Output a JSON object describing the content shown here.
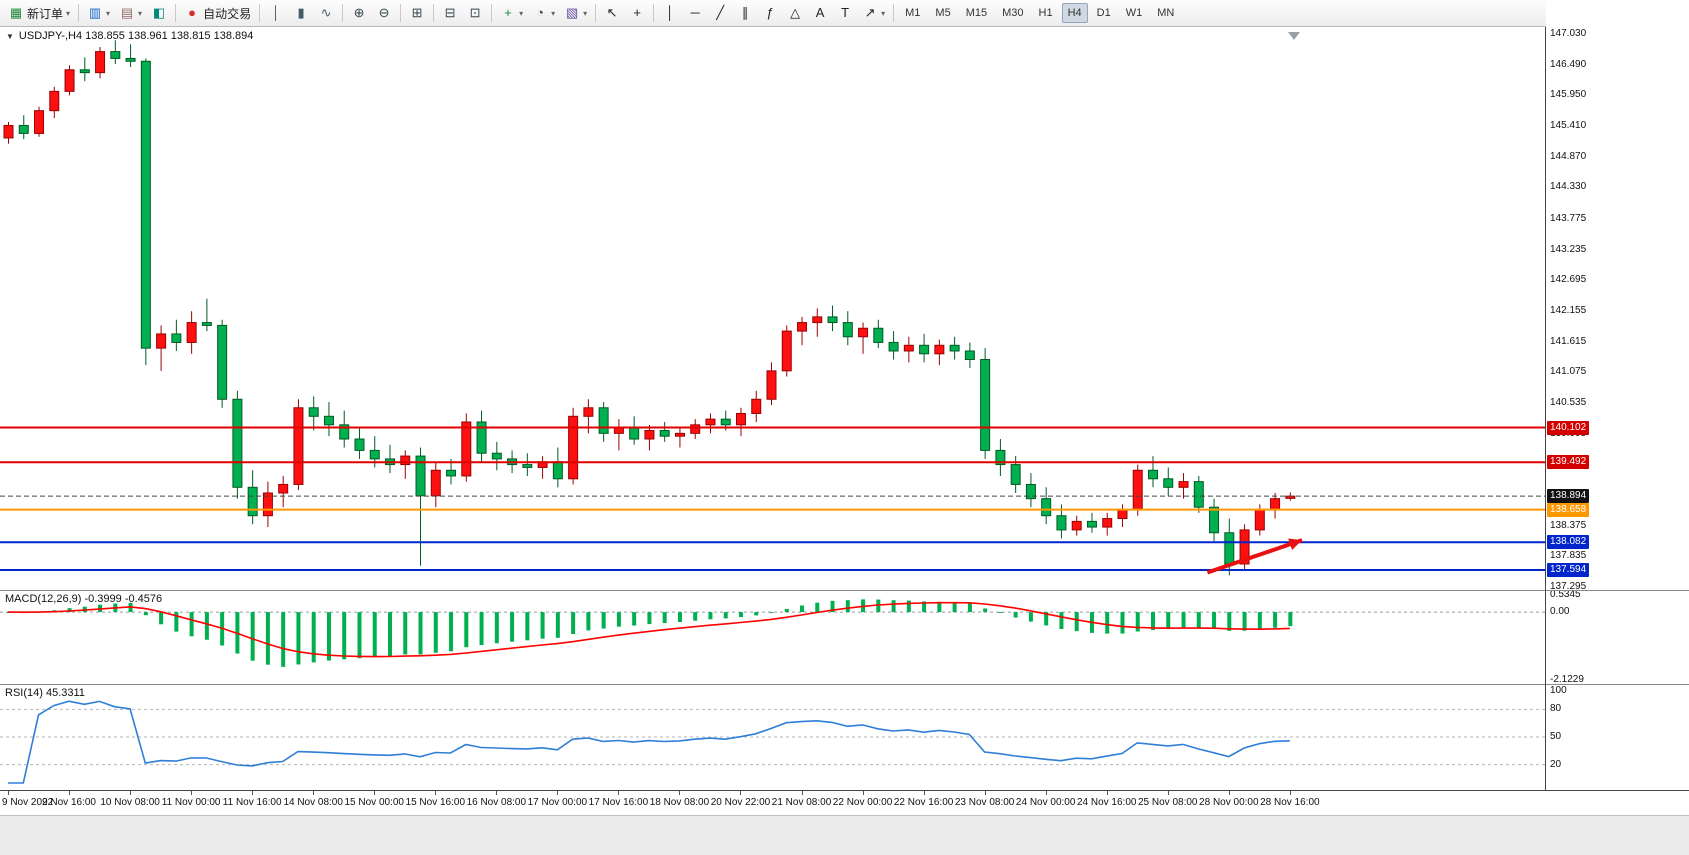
{
  "toolbar": {
    "groups": [
      {
        "items": [
          {
            "name": "new-order",
            "glyph": "▦",
            "color": "#1b8a3a",
            "label": "新订单",
            "caret": true
          }
        ]
      },
      {
        "items": [
          {
            "name": "new-chart",
            "glyph": "▥",
            "color": "#1565c0",
            "caret": true
          },
          {
            "name": "profiles",
            "glyph": "▤",
            "color": "#8d6e63",
            "caret": true
          },
          {
            "name": "data-window",
            "glyph": "◧",
            "color": "#00897b"
          }
        ]
      },
      {
        "items": [
          {
            "name": "auto-trading",
            "glyph": "●",
            "color": "#d32f2f",
            "label": "自动交易"
          }
        ]
      },
      {
        "items": [
          {
            "name": "bar-chart-mode",
            "glyph": "│",
            "color": "#455a64"
          },
          {
            "name": "candlestick-mode",
            "glyph": "▮",
            "color": "#455a64"
          },
          {
            "name": "line-chart-mode",
            "glyph": "∿",
            "color": "#455a64"
          }
        ]
      },
      {
        "items": [
          {
            "name": "zoom-in",
            "glyph": "⊕",
            "color": "#37474f"
          },
          {
            "name": "zoom-out",
            "glyph": "⊖",
            "color": "#37474f"
          }
        ]
      },
      {
        "items": [
          {
            "name": "tile-windows",
            "glyph": "⊞",
            "color": "#37474f"
          }
        ]
      },
      {
        "items": [
          {
            "name": "auto-arrange",
            "glyph": "⊟",
            "color": "#37474f"
          },
          {
            "name": "arrange-charts",
            "glyph": "⊡",
            "color": "#37474f"
          }
        ]
      },
      {
        "items": [
          {
            "name": "indicators",
            "glyph": "+",
            "color": "#1b8a3a",
            "caret": true
          },
          {
            "name": "periods",
            "glyph": "◔",
            "color": "#37474f",
            "caret": true
          },
          {
            "name": "templates",
            "glyph": "▧",
            "color": "#6a4fa3",
            "caret": true
          }
        ]
      },
      {
        "items": [
          {
            "name": "cursor",
            "glyph": "↖",
            "color": "#222222"
          },
          {
            "name": "crosshair",
            "glyph": "+",
            "color": "#222222"
          }
        ]
      },
      {
        "items": [
          {
            "name": "vertical-line-tool",
            "glyph": "│",
            "color": "#222222"
          },
          {
            "name": "horizontal-line-tool",
            "glyph": "─",
            "color": "#222222"
          },
          {
            "name": "trendline-tool",
            "glyph": "╱",
            "color": "#222222"
          },
          {
            "name": "channel-tool",
            "glyph": "∥",
            "color": "#222222"
          },
          {
            "name": "fibonacci-tool",
            "glyph": "ƒ",
            "color": "#222222"
          },
          {
            "name": "shapes-tool",
            "glyph": "△",
            "color": "#222222"
          },
          {
            "name": "text-tool",
            "glyph": "A",
            "color": "#222222"
          },
          {
            "name": "label-tool",
            "glyph": "T",
            "color": "#222222"
          },
          {
            "name": "arrows-tool",
            "glyph": "↗",
            "color": "#222222",
            "caret": true
          }
        ]
      }
    ],
    "timeframes": {
      "items": [
        "M1",
        "M5",
        "M15",
        "M30",
        "H1",
        "H4",
        "D1",
        "W1",
        "MN"
      ],
      "active": "H4"
    },
    "right": {
      "items": [
        {
          "name": "support-contact",
          "glyph": "☎",
          "color": "#1565c0"
        },
        {
          "name": "messages",
          "glyph": "✉",
          "color": "#1565c0"
        }
      ],
      "badge_color": "#e53935"
    }
  },
  "chart": {
    "title_text": "USDJPY-,H4 138.855 138.961 138.815 138.894",
    "y_axis_ticks": [
      "147.030",
      "146.490",
      "145.950",
      "145.410",
      "144.870",
      "144.330",
      "143.775",
      "143.235",
      "142.695",
      "142.155",
      "141.615",
      "141.075",
      "140.535",
      "139.995",
      "138.375",
      "137.835",
      "137.295"
    ],
    "price_badges": [
      {
        "text": "140.102",
        "bg": "#d40000"
      },
      {
        "text": "139.492",
        "bg": "#d40000"
      },
      {
        "text": "138.894",
        "bg": "#111111"
      },
      {
        "text": "138.658",
        "bg": "#ff9800"
      },
      {
        "text": "138.082",
        "bg": "#0026cc"
      },
      {
        "text": "137.594",
        "bg": "#0026cc"
      }
    ],
    "x_axis_labels": [
      "9 Nov 2022",
      "9 Nov 16:00",
      "10 Nov 08:00",
      "11 Nov 00:00",
      "11 Nov 16:00",
      "14 Nov 08:00",
      "15 Nov 00:00",
      "15 Nov 16:00",
      "16 Nov 08:00",
      "17 Nov 00:00",
      "17 Nov 16:00",
      "18 Nov 08:00",
      "20 Nov 22:00",
      "21 Nov 08:00",
      "22 Nov 00:00",
      "22 Nov 16:00",
      "23 Nov 08:00",
      "24 Nov 00:00",
      "24 Nov 16:00",
      "25 Nov 08:00",
      "28 Nov 00:00",
      "28 Nov 16:00"
    ]
  },
  "macd": {
    "label": "MACD(12,26,9) -0.3999 -0.4576",
    "axis": [
      {
        "text": "0.5345",
        "v": 0.5345
      },
      {
        "text": "0.00",
        "v": 0
      },
      {
        "text": "-2.1229",
        "v": -2.1229
      }
    ],
    "ylim": [
      -2.1229,
      0.5345
    ],
    "bar_color": "#00b050",
    "signal_color": "#ff0000"
  },
  "rsi": {
    "label": "RSI(14) 45.3311",
    "axis": [
      {
        "text": "100",
        "v": 100
      },
      {
        "text": "80",
        "v": 80
      },
      {
        "text": "50",
        "v": 50
      },
      {
        "text": "20",
        "v": 20
      }
    ],
    "levels": [
      80,
      50,
      20
    ],
    "line_color": "#2f7ed8"
  },
  "chart_data": {
    "type": "candlestick",
    "symbol": "USDJPY-",
    "timeframe": "H4",
    "ylim": [
      137.295,
      147.03
    ],
    "up_color": "#fe1010",
    "down_color": "#00b050",
    "candles": [
      [
        145.2,
        145.48,
        145.1,
        145.42
      ],
      [
        145.42,
        145.6,
        145.18,
        145.28
      ],
      [
        145.28,
        145.75,
        145.22,
        145.68
      ],
      [
        145.68,
        146.1,
        145.55,
        146.02
      ],
      [
        146.02,
        146.48,
        145.95,
        146.4
      ],
      [
        146.4,
        146.62,
        146.2,
        146.35
      ],
      [
        146.35,
        146.8,
        146.25,
        146.72
      ],
      [
        146.72,
        146.92,
        146.5,
        146.6
      ],
      [
        146.6,
        146.85,
        146.45,
        146.55
      ],
      [
        146.55,
        146.6,
        141.2,
        141.5
      ],
      [
        141.5,
        141.9,
        141.1,
        141.75
      ],
      [
        141.75,
        142.0,
        141.45,
        141.6
      ],
      [
        141.6,
        142.15,
        141.4,
        141.95
      ],
      [
        141.95,
        142.37,
        141.8,
        141.9
      ],
      [
        141.9,
        142.0,
        140.45,
        140.6
      ],
      [
        140.6,
        140.75,
        138.85,
        139.05
      ],
      [
        139.05,
        139.35,
        138.4,
        138.55
      ],
      [
        138.55,
        139.15,
        138.35,
        138.95
      ],
      [
        138.95,
        139.25,
        138.7,
        139.1
      ],
      [
        139.1,
        140.6,
        139.0,
        140.45
      ],
      [
        140.45,
        140.65,
        140.05,
        140.3
      ],
      [
        140.3,
        140.55,
        139.95,
        140.15
      ],
      [
        140.15,
        140.4,
        139.75,
        139.9
      ],
      [
        139.9,
        140.1,
        139.55,
        139.7
      ],
      [
        139.7,
        139.95,
        139.4,
        139.55
      ],
      [
        139.55,
        139.8,
        139.3,
        139.45
      ],
      [
        139.45,
        139.7,
        139.2,
        139.6
      ],
      [
        139.6,
        139.75,
        137.67,
        138.9
      ],
      [
        138.9,
        139.5,
        138.7,
        139.35
      ],
      [
        139.35,
        139.55,
        139.1,
        139.25
      ],
      [
        139.25,
        140.35,
        139.15,
        140.2
      ],
      [
        140.2,
        140.4,
        139.5,
        139.65
      ],
      [
        139.65,
        139.85,
        139.35,
        139.55
      ],
      [
        139.55,
        139.7,
        139.3,
        139.45
      ],
      [
        139.45,
        139.65,
        139.25,
        139.4
      ],
      [
        139.4,
        139.6,
        139.2,
        139.5
      ],
      [
        139.5,
        139.75,
        139.05,
        139.2
      ],
      [
        139.2,
        140.45,
        139.1,
        140.3
      ],
      [
        140.3,
        140.6,
        140.0,
        140.45
      ],
      [
        140.45,
        140.55,
        139.85,
        140.0
      ],
      [
        140.0,
        140.25,
        139.7,
        140.1
      ],
      [
        140.1,
        140.3,
        139.8,
        139.9
      ],
      [
        139.9,
        140.15,
        139.7,
        140.05
      ],
      [
        140.05,
        140.2,
        139.85,
        139.95
      ],
      [
        139.95,
        140.1,
        139.75,
        140.0
      ],
      [
        140.0,
        140.25,
        139.9,
        140.15
      ],
      [
        140.15,
        140.35,
        140.0,
        140.25
      ],
      [
        140.25,
        140.4,
        140.05,
        140.15
      ],
      [
        140.15,
        140.45,
        139.95,
        140.35
      ],
      [
        140.35,
        140.75,
        140.2,
        140.6
      ],
      [
        140.6,
        141.25,
        140.5,
        141.1
      ],
      [
        141.1,
        141.9,
        141.0,
        141.8
      ],
      [
        141.8,
        142.05,
        141.55,
        141.95
      ],
      [
        141.95,
        142.2,
        141.7,
        142.05
      ],
      [
        142.05,
        142.25,
        141.8,
        141.95
      ],
      [
        141.95,
        142.15,
        141.55,
        141.7
      ],
      [
        141.7,
        141.95,
        141.4,
        141.85
      ],
      [
        141.85,
        142.0,
        141.5,
        141.6
      ],
      [
        141.6,
        141.8,
        141.3,
        141.45
      ],
      [
        141.45,
        141.7,
        141.25,
        141.55
      ],
      [
        141.55,
        141.75,
        141.25,
        141.4
      ],
      [
        141.4,
        141.65,
        141.2,
        141.55
      ],
      [
        141.55,
        141.7,
        141.3,
        141.45
      ],
      [
        141.45,
        141.6,
        141.15,
        141.3
      ],
      [
        141.3,
        141.5,
        139.55,
        139.7
      ],
      [
        139.7,
        139.9,
        139.25,
        139.45
      ],
      [
        139.45,
        139.6,
        138.95,
        139.1
      ],
      [
        139.1,
        139.3,
        138.7,
        138.85
      ],
      [
        138.85,
        139.05,
        138.4,
        138.55
      ],
      [
        138.55,
        138.75,
        138.15,
        138.3
      ],
      [
        138.3,
        138.55,
        138.2,
        138.45
      ],
      [
        138.45,
        138.6,
        138.25,
        138.35
      ],
      [
        138.35,
        138.6,
        138.2,
        138.5
      ],
      [
        138.5,
        138.75,
        138.35,
        138.65
      ],
      [
        138.65,
        139.45,
        138.55,
        139.35
      ],
      [
        139.35,
        139.6,
        139.05,
        139.2
      ],
      [
        139.2,
        139.4,
        138.9,
        139.05
      ],
      [
        139.05,
        139.3,
        138.85,
        139.15
      ],
      [
        139.15,
        139.25,
        138.6,
        138.7
      ],
      [
        138.7,
        138.85,
        138.1,
        138.25
      ],
      [
        138.25,
        138.5,
        137.5,
        137.7
      ],
      [
        137.7,
        138.4,
        137.6,
        138.3
      ],
      [
        138.3,
        138.75,
        138.2,
        138.65
      ],
      [
        138.65,
        138.95,
        138.5,
        138.85
      ],
      [
        138.855,
        138.961,
        138.815,
        138.894
      ]
    ],
    "h_lines": [
      {
        "price": 140.102,
        "color": "#e00000",
        "width": 2
      },
      {
        "price": 139.492,
        "color": "#e00000",
        "width": 2
      },
      {
        "price": 138.894,
        "color": "#444444",
        "width": 1,
        "dash": "5,3"
      },
      {
        "price": 138.658,
        "color": "#ff9800",
        "width": 2
      },
      {
        "price": 138.082,
        "color": "#0026cc",
        "width": 2
      },
      {
        "price": 137.594,
        "color": "#0026cc",
        "width": 2
      }
    ],
    "annotations": [
      {
        "type": "arrow",
        "from": {
          "bar": 78.6,
          "price": 137.55
        },
        "to": {
          "bar": 84.8,
          "price": 138.12
        },
        "color": "#e81010",
        "width": 4
      }
    ],
    "indicators": [
      {
        "name": "MACD",
        "params": [
          12,
          26,
          9
        ],
        "values": [
          -0.3999,
          -0.4576
        ]
      },
      {
        "name": "RSI",
        "params": [
          14
        ],
        "value": 45.3311
      }
    ]
  }
}
